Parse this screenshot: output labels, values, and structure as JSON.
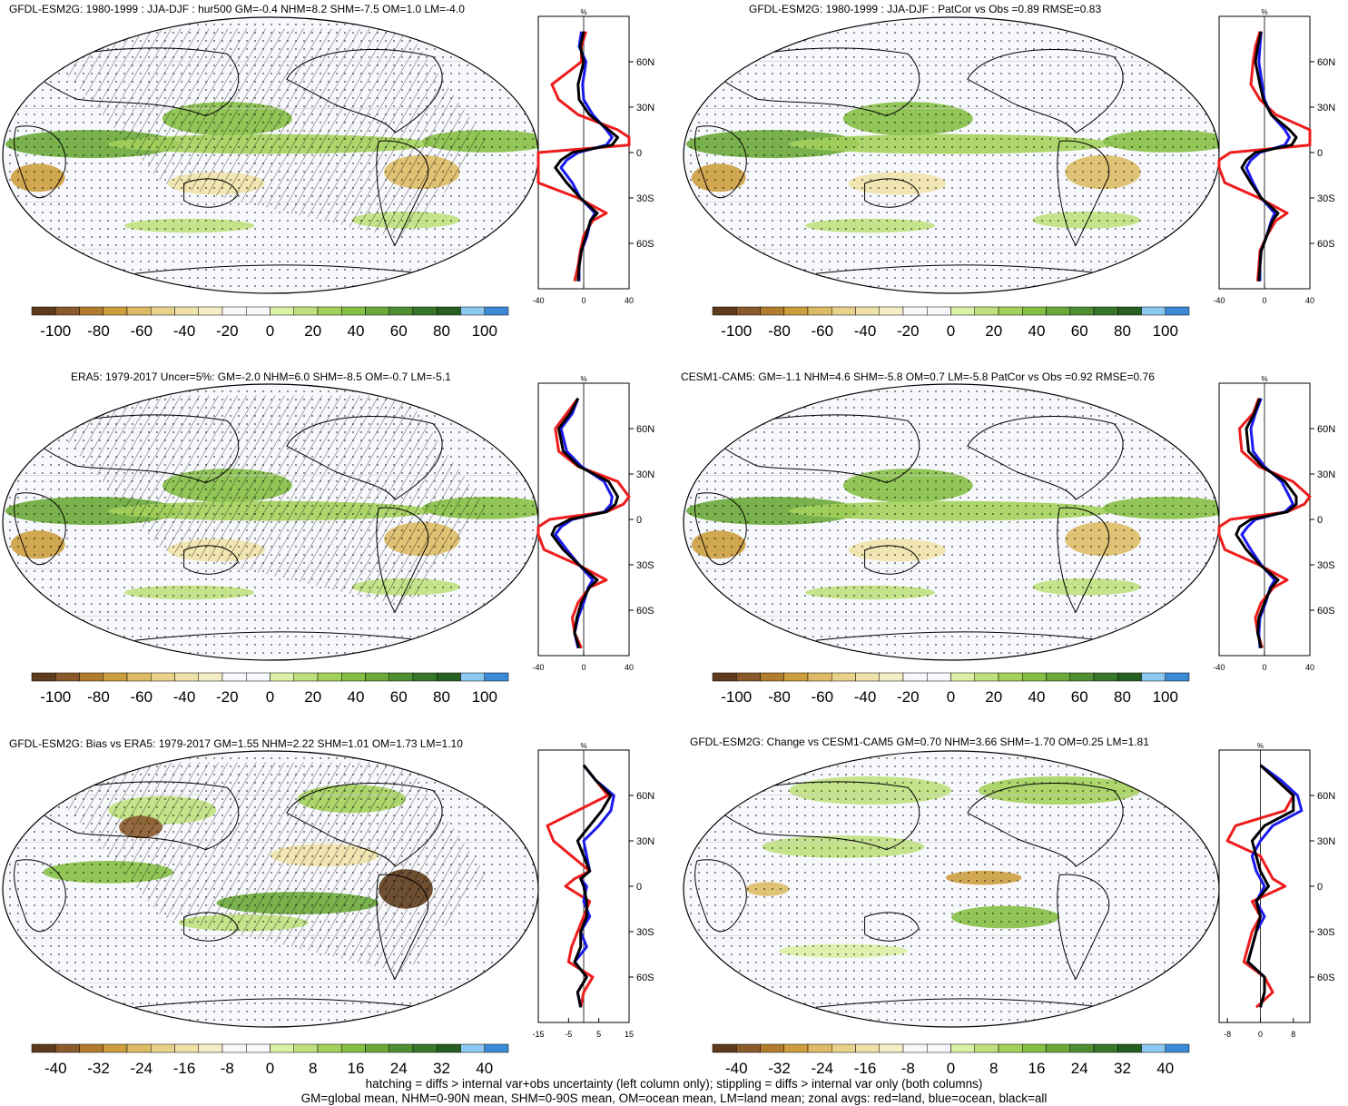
{
  "panels": [
    {
      "id": "p1",
      "title": "GFDL-ESM2G: 1980-1999 : JJA-DJF : hur500 GM=-0.4 NHM=8.2 SHM=-7.5 OM=1.0 LM=-4.0",
      "hatch": true,
      "scale": "pct"
    },
    {
      "id": "p2",
      "title": "GFDL-ESM2G: 1980-1999 : JJA-DJF : PatCor vs Obs =0.89 RMSE=0.83",
      "hatch": false,
      "scale": "pct"
    },
    {
      "id": "p3",
      "title": "ERA5: 1979-2017 Uncer=5%: GM=-2.0 NHM=6.0 SHM=-8.5 OM=-0.7 LM=-5.1",
      "hatch": true,
      "scale": "pct"
    },
    {
      "id": "p4",
      "title": "CESM1-CAM5: GM=-1.1 NHM=4.6 SHM=-5.8 OM=0.7 LM=-5.8 PatCor vs Obs =0.92 RMSE=0.76",
      "hatch": false,
      "scale": "pct"
    },
    {
      "id": "p5",
      "title": "GFDL-ESM2G: Bias vs ERA5: 1979-2017 GM=1.55 NHM=2.22 SHM=1.01 OM=1.73 LM=1.10",
      "hatch": true,
      "scale": "bias"
    },
    {
      "id": "p6",
      "title": "GFDL-ESM2G: Change vs CESM1-CAM5 GM=0.70 NHM=3.66 SHM=-1.70 OM=0.25 LM=1.81",
      "hatch": false,
      "scale": "chg"
    }
  ],
  "zonal_units": "%",
  "lat_labels": [
    "60N",
    "30N",
    "0",
    "30S",
    "60S"
  ],
  "zonal_xticks": {
    "pct": [
      "-40",
      "0",
      "40"
    ],
    "bias": [
      "-15",
      "-5",
      "5",
      "15"
    ],
    "chg": [
      "-8",
      "0",
      "8"
    ]
  },
  "colorbar_labels": {
    "pct": [
      "-100",
      "-80",
      "-60",
      "-40",
      "-20",
      "0",
      "20",
      "40",
      "60",
      "80",
      "100"
    ],
    "bias": [
      "-40",
      "-32",
      "-24",
      "-16",
      "-8",
      "0",
      "8",
      "16",
      "24",
      "32",
      "40"
    ]
  },
  "colorbar_colors": [
    "#5e3c1b",
    "#8a5a2b",
    "#b27c2e",
    "#cd9d3e",
    "#ddbb66",
    "#e8d28b",
    "#efe2a8",
    "#f5edc6",
    "#f7f8fc",
    "#f7f8fc",
    "#dcefa6",
    "#bfe07e",
    "#a3d05b",
    "#86bf45",
    "#6aa83a",
    "#4f8f32",
    "#377729",
    "#275f20",
    "#8cc8ef",
    "#3c8ad6"
  ],
  "zonal_colors": {
    "land": "#ee1c1c",
    "ocean": "#1a1aee",
    "all": "#000000"
  },
  "footer": {
    "line1": "hatching = diffs > internal var+obs uncertainty (left column only); stippling = diffs > internal var only (both columns)",
    "line2": "GM=global mean, NHM=0-90N mean, SHM=0-90S mean, OM=ocean mean, LM=land mean; zonal avgs: red=land, blue=ocean, black=all"
  },
  "chart_data": [
    {
      "type": "heatmap",
      "title": "GFDL-ESM2G: 1980-1999 : JJA-DJF : hur500 GM=-0.4 NHM=8.2 SHM=-7.5 OM=1.0 LM=-4.0",
      "xlabel": "",
      "ylabel": "",
      "colorbar_range": [
        -100,
        100
      ],
      "zonal_xlim": [
        -40,
        40
      ],
      "zonal_profile": {
        "lat": [
          80,
          70,
          60,
          45,
          35,
          25,
          15,
          10,
          5,
          0,
          -5,
          -10,
          -20,
          -30,
          -40,
          -45,
          -55,
          -65,
          -75,
          -85
        ],
        "land": [
          2,
          -2,
          -2,
          -28,
          -22,
          -5,
          30,
          50,
          45,
          -40,
          -60,
          -55,
          -45,
          -5,
          20,
          8,
          0,
          -3,
          -5,
          -8
        ],
        "ocean": [
          -2,
          -4,
          2,
          -1,
          0,
          8,
          20,
          25,
          20,
          -5,
          -15,
          -20,
          -10,
          -3,
          10,
          6,
          3,
          -2,
          -4,
          -4
        ],
        "all": [
          0,
          -3,
          0,
          -5,
          -4,
          5,
          22,
          30,
          25,
          -10,
          -20,
          -25,
          -15,
          -3,
          12,
          6,
          2,
          -2,
          -4,
          -5
        ]
      }
    },
    {
      "type": "heatmap",
      "title": "GFDL-ESM2G: 1980-1999 : JJA-DJF : PatCor vs Obs =0.89 RMSE=0.83",
      "xlabel": "",
      "ylabel": "",
      "colorbar_range": [
        -100,
        100
      ],
      "zonal_xlim": [
        -40,
        40
      ],
      "zonal_profile": {
        "lat": [
          80,
          70,
          60,
          45,
          35,
          25,
          15,
          10,
          5,
          0,
          -5,
          -10,
          -20,
          -30,
          -40,
          -45,
          -55,
          -65,
          -75,
          -85
        ],
        "land": [
          -4,
          -8,
          -10,
          -12,
          -4,
          10,
          40,
          45,
          40,
          -30,
          -50,
          -40,
          -35,
          -5,
          20,
          10,
          2,
          -4,
          -5,
          -6
        ],
        "ocean": [
          -3,
          -4,
          -5,
          -2,
          0,
          6,
          18,
          22,
          18,
          -4,
          -12,
          -16,
          -10,
          -3,
          9,
          6,
          2,
          -3,
          -4,
          -4
        ],
        "all": [
          -3,
          -6,
          -8,
          -4,
          -1,
          6,
          22,
          28,
          24,
          -8,
          -16,
          -20,
          -12,
          -3,
          12,
          7,
          2,
          -3,
          -4,
          -5
        ]
      }
    },
    {
      "type": "heatmap",
      "title": "ERA5: 1979-2017 Uncer=5%: GM=-2.0 NHM=6.0 SHM=-8.5 OM=-0.7 LM=-5.1",
      "xlabel": "",
      "ylabel": "",
      "colorbar_range": [
        -100,
        100
      ],
      "zonal_xlim": [
        -40,
        40
      ],
      "zonal_profile": {
        "lat": [
          80,
          70,
          60,
          45,
          35,
          25,
          15,
          10,
          5,
          0,
          -5,
          -10,
          -20,
          -30,
          -40,
          -45,
          -55,
          -65,
          -75,
          -85
        ],
        "land": [
          -5,
          -15,
          -25,
          -22,
          -5,
          30,
          40,
          35,
          20,
          -30,
          -45,
          -40,
          -35,
          -5,
          20,
          5,
          -5,
          -10,
          -8,
          -2
        ],
        "ocean": [
          -5,
          -10,
          -20,
          -15,
          -2,
          18,
          25,
          24,
          18,
          -10,
          -20,
          -25,
          -15,
          -4,
          8,
          4,
          0,
          -5,
          -8,
          -5
        ],
        "all": [
          -5,
          -12,
          -22,
          -18,
          -4,
          22,
          30,
          28,
          20,
          -12,
          -25,
          -28,
          -18,
          -4,
          12,
          5,
          -2,
          -6,
          -8,
          -4
        ]
      }
    },
    {
      "type": "heatmap",
      "title": "CESM1-CAM5: GM=-1.1 NHM=4.6 SHM=-5.8 OM=0.7 LM=-5.8 PatCor vs Obs =0.92 RMSE=0.76",
      "xlabel": "",
      "ylabel": "",
      "colorbar_range": [
        -100,
        100
      ],
      "zonal_xlim": [
        -40,
        40
      ],
      "zonal_profile": {
        "lat": [
          80,
          70,
          60,
          45,
          35,
          25,
          15,
          10,
          5,
          0,
          -5,
          -10,
          -20,
          -30,
          -40,
          -45,
          -55,
          -65,
          -75,
          -85
        ],
        "land": [
          -5,
          -10,
          -22,
          -20,
          -5,
          25,
          40,
          35,
          20,
          -30,
          -45,
          -40,
          -35,
          -5,
          20,
          8,
          -3,
          -8,
          -6,
          -2
        ],
        "ocean": [
          -3,
          -8,
          -12,
          -10,
          0,
          15,
          22,
          25,
          18,
          -8,
          -15,
          -20,
          -12,
          -3,
          9,
          5,
          1,
          -4,
          -5,
          -4
        ],
        "all": [
          -4,
          -9,
          -16,
          -14,
          -2,
          18,
          28,
          28,
          20,
          -12,
          -22,
          -25,
          -16,
          -4,
          12,
          6,
          0,
          -5,
          -6,
          -3
        ]
      }
    },
    {
      "type": "heatmap",
      "title": "GFDL-ESM2G: Bias vs ERA5: 1979-2017 GM=1.55 NHM=2.22 SHM=1.01 OM=1.73 LM=1.10",
      "xlabel": "",
      "ylabel": "",
      "colorbar_range": [
        -40,
        40
      ],
      "zonal_xlim": [
        -15,
        15
      ],
      "zonal_profile": {
        "lat": [
          80,
          70,
          60,
          50,
          40,
          30,
          20,
          10,
          5,
          0,
          -10,
          -20,
          -30,
          -40,
          -50,
          -60,
          -70,
          -80
        ],
        "land": [
          0,
          4,
          8,
          -2,
          -12,
          -10,
          -4,
          2,
          -3,
          -6,
          2,
          0,
          -2,
          -4,
          -5,
          3,
          0,
          -1
        ],
        "ocean": [
          0,
          4,
          10,
          9,
          5,
          0,
          1,
          2,
          -1,
          1,
          0,
          2,
          -1,
          1,
          -3,
          1,
          -2,
          -1
        ],
        "all": [
          0,
          4,
          9,
          6,
          2,
          -2,
          0,
          2,
          -1,
          0,
          1,
          1,
          -1,
          -1,
          -3,
          1,
          -2,
          -1
        ]
      }
    },
    {
      "type": "heatmap",
      "title": "GFDL-ESM2G: Change vs CESM1-CAM5 GM=0.70 NHM=3.66 SHM=-1.70 OM=0.25 LM=1.81",
      "xlabel": "",
      "ylabel": "",
      "colorbar_range": [
        -40,
        40
      ],
      "zonal_xlim": [
        -10,
        12
      ],
      "zonal_profile": {
        "lat": [
          80,
          70,
          60,
          50,
          40,
          30,
          20,
          10,
          5,
          0,
          -10,
          -20,
          -30,
          -40,
          -50,
          -60,
          -70,
          -80
        ],
        "land": [
          0,
          4,
          8,
          6,
          -6,
          -8,
          0,
          2,
          3,
          6,
          -2,
          0,
          -2,
          -3,
          -4,
          1,
          3,
          -1
        ],
        "ocean": [
          0,
          5,
          9,
          10,
          3,
          0,
          -2,
          -1,
          0,
          1,
          -1,
          1,
          -1,
          -2,
          -3,
          1,
          1,
          0
        ],
        "all": [
          0,
          4,
          8,
          8,
          1,
          -2,
          -1,
          0,
          1,
          2,
          -1,
          0,
          -1,
          -2,
          -3,
          1,
          1,
          0
        ]
      }
    }
  ]
}
